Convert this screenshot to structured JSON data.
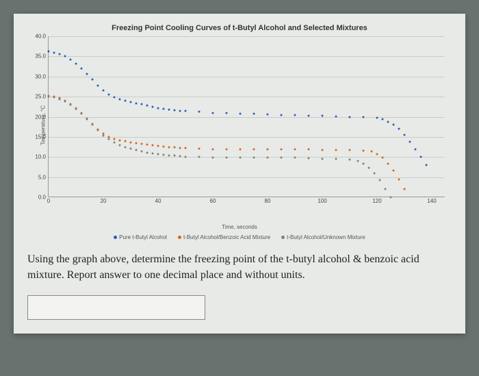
{
  "chart": {
    "type": "scatter",
    "title": "Freezing Point Cooling Curves of t-Butyl Alcohol and Selected Mixtures",
    "xlabel": "Time, seconds",
    "ylabel": "Temperature, °C",
    "xlim": [
      0,
      145
    ],
    "ylim": [
      0,
      40
    ],
    "xtick_step": 20,
    "xticks": [
      0,
      20,
      40,
      60,
      80,
      100,
      120,
      140
    ],
    "ytick_step": 5,
    "yticks": [
      0.0,
      5.0,
      10.0,
      15.0,
      20.0,
      25.0,
      30.0,
      35.0,
      40.0
    ],
    "ytick_labels": [
      "0.0",
      "5.0",
      "10.0",
      "15.0",
      "20.0",
      "25.0",
      "30.0",
      "35.0",
      "40.0"
    ],
    "background_color": "#e8eae7",
    "grid_color": "rgba(150,150,150,0.35)",
    "marker_size": 3,
    "series": [
      {
        "name": "Pure t-Butyl Alcohol",
        "color": "#2b5fb8",
        "x": [
          0,
          2,
          4,
          6,
          8,
          10,
          12,
          14,
          16,
          18,
          20,
          22,
          24,
          26,
          28,
          30,
          32,
          34,
          36,
          38,
          40,
          42,
          44,
          46,
          48,
          50,
          55,
          60,
          65,
          70,
          75,
          80,
          85,
          90,
          95,
          100,
          105,
          110,
          115,
          120,
          122,
          124,
          126,
          128,
          130,
          132,
          134,
          136,
          138
        ],
        "y": [
          36.2,
          36.0,
          35.6,
          35.0,
          34.2,
          33.2,
          32.0,
          30.6,
          29.2,
          27.8,
          26.6,
          25.6,
          24.9,
          24.4,
          24.0,
          23.7,
          23.4,
          23.1,
          22.8,
          22.5,
          22.2,
          22.0,
          21.8,
          21.6,
          21.5,
          21.4,
          21.2,
          21.0,
          20.9,
          20.8,
          20.7,
          20.6,
          20.5,
          20.4,
          20.3,
          20.2,
          20.1,
          20.0,
          19.9,
          19.7,
          19.4,
          18.8,
          18.0,
          17.0,
          15.5,
          13.8,
          12.0,
          10.0,
          8.0
        ]
      },
      {
        "name": "t-Butyl Alcohol/Benzoic Acid Mixture",
        "color": "#d9641c",
        "x": [
          0,
          2,
          4,
          6,
          8,
          10,
          12,
          14,
          16,
          18,
          20,
          22,
          24,
          26,
          28,
          30,
          32,
          34,
          36,
          38,
          40,
          42,
          44,
          46,
          48,
          50,
          55,
          60,
          65,
          70,
          75,
          80,
          85,
          90,
          95,
          100,
          105,
          110,
          115,
          118,
          120,
          122,
          124,
          126,
          128,
          130
        ],
        "y": [
          25.2,
          25.0,
          24.6,
          24.0,
          23.2,
          22.2,
          21.0,
          19.6,
          18.2,
          16.8,
          15.8,
          15.0,
          14.5,
          14.2,
          13.9,
          13.7,
          13.5,
          13.3,
          13.1,
          12.9,
          12.7,
          12.6,
          12.5,
          12.4,
          12.3,
          12.2,
          12.1,
          12.0,
          12.0,
          12.0,
          12.0,
          12.0,
          12.0,
          11.9,
          11.9,
          11.8,
          11.8,
          11.7,
          11.6,
          11.4,
          10.8,
          9.8,
          8.4,
          6.6,
          4.5,
          2.0
        ]
      },
      {
        "name": "t-Butyl Alcohol/Unknown Mixture",
        "color": "#808080",
        "x": [
          0,
          2,
          4,
          6,
          8,
          10,
          12,
          14,
          16,
          18,
          20,
          22,
          24,
          26,
          28,
          30,
          32,
          34,
          36,
          38,
          40,
          42,
          44,
          46,
          48,
          50,
          55,
          60,
          65,
          70,
          75,
          80,
          85,
          90,
          95,
          100,
          105,
          110,
          113,
          115,
          117,
          119,
          121,
          123,
          125
        ],
        "y": [
          25.0,
          24.8,
          24.4,
          23.8,
          23.0,
          22.0,
          20.8,
          19.4,
          18.0,
          16.6,
          15.4,
          14.4,
          13.6,
          13.0,
          12.5,
          12.1,
          11.7,
          11.4,
          11.1,
          10.9,
          10.7,
          10.5,
          10.4,
          10.3,
          10.2,
          10.1,
          10.0,
          9.9,
          9.9,
          9.9,
          9.9,
          9.9,
          9.8,
          9.8,
          9.7,
          9.6,
          9.5,
          9.3,
          9.0,
          8.4,
          7.4,
          6.0,
          4.2,
          2.0,
          0.0
        ]
      }
    ],
    "legend_items": [
      {
        "label": "Pure t-Butyl Alcohol",
        "color": "#2b5fb8"
      },
      {
        "label": "t-Butyl Alcohol/Benzoic Acid Mixture",
        "color": "#d9641c"
      },
      {
        "label": "t-Butyl Alcohol/Unknown Mixture",
        "color": "#808080"
      }
    ]
  },
  "question": {
    "text": "Using the graph above, determine the freezing point of the t-butyl alcohol & benzoic acid mixture. Report answer to one decimal place and without units."
  },
  "answer": {
    "value": "",
    "placeholder": ""
  }
}
